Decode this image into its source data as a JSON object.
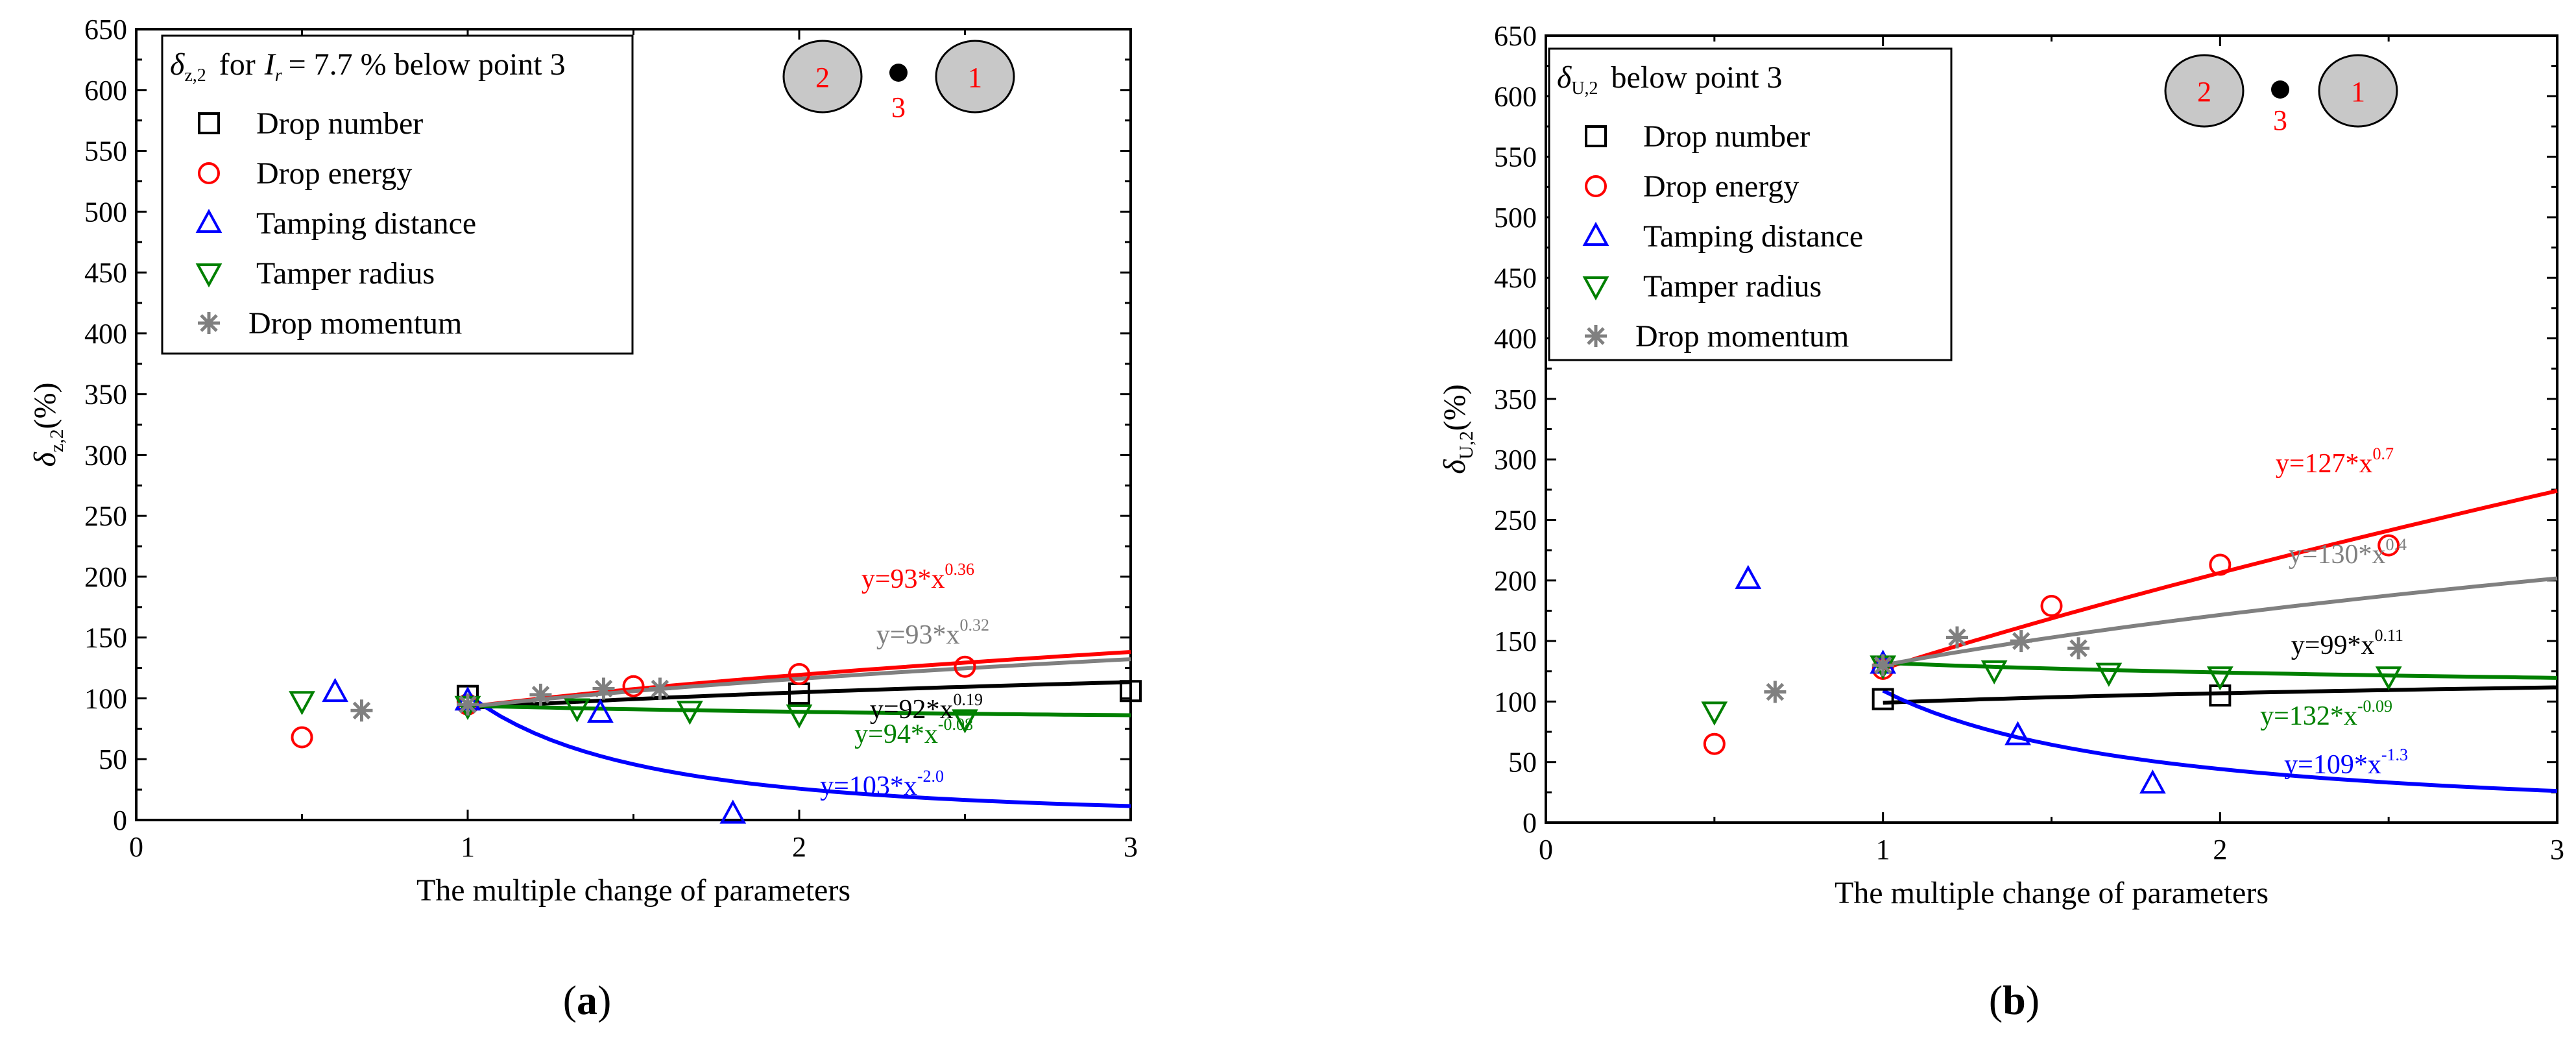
{
  "captions": [
    "(a)",
    "(b)"
  ],
  "common": {
    "xlabel": "The multiple change of parameters",
    "legend_labels": [
      "Drop number",
      "Drop energy",
      "Tamping distance",
      "Tamper radius",
      "Drop momentum"
    ],
    "diagram_labels": {
      "left": "2",
      "point": "3",
      "right": "1"
    }
  },
  "colors": {
    "drop_number": "#000000",
    "drop_energy": "#ff0000",
    "tamping_distance": "#0000ff",
    "tamper_radius": "#008000",
    "drop_momentum": "#808080"
  },
  "chart_data": [
    {
      "type": "scatter",
      "panel": "a",
      "ylabel_symbol": "δ",
      "ylabel_sub": "z,2",
      "ylabel_unit": "(%)",
      "legend_title": {
        "symbol": "δ",
        "sub": "z,2",
        "pre": "for",
        "var": "I",
        "var_sub": "r",
        "post": "= 7.7 % below point 3"
      },
      "xlim": [
        0,
        3
      ],
      "ylim": [
        0,
        650
      ],
      "xticks": [
        "0",
        "1",
        "2",
        "3"
      ],
      "yticks": [
        "0",
        "50",
        "100",
        "150",
        "200",
        "250",
        "300",
        "350",
        "400",
        "450",
        "500",
        "550",
        "600",
        "650"
      ],
      "series": [
        {
          "name": "Drop number",
          "key": "drop_number",
          "marker": "square",
          "points": [
            [
              1,
              102
            ],
            [
              2,
              104
            ],
            [
              3,
              106
            ]
          ],
          "fit": {
            "a": 92,
            "b": 0.19
          },
          "eq": {
            "base": "y=92*x",
            "exp": "0.19"
          }
        },
        {
          "name": "Drop energy",
          "key": "drop_energy",
          "marker": "circle",
          "points": [
            [
              0.5,
              68
            ],
            [
              1,
              95
            ],
            [
              1.5,
              110
            ],
            [
              2,
              120
            ],
            [
              2.5,
              126
            ]
          ],
          "fit": {
            "a": 93,
            "b": 0.36
          },
          "eq": {
            "base": "y=93*x",
            "exp": "0.36"
          }
        },
        {
          "name": "Tamping distance",
          "key": "tamping_distance",
          "marker": "triangle-up",
          "points": [
            [
              0.6,
              105
            ],
            [
              1,
              98
            ],
            [
              1.4,
              88
            ],
            [
              1.8,
              5
            ]
          ],
          "fit": {
            "a": 103,
            "b": -2.0
          },
          "eq": {
            "base": "y=103*x",
            "exp": "-2.0"
          }
        },
        {
          "name": "Tamper radius",
          "key": "tamper_radius",
          "marker": "triangle-down",
          "points": [
            [
              0.5,
              98
            ],
            [
              1,
              94
            ],
            [
              1.33,
              92
            ],
            [
              1.67,
              90
            ],
            [
              2,
              87
            ],
            [
              2.5,
              83
            ]
          ],
          "fit": {
            "a": 94,
            "b": -0.08
          },
          "eq": {
            "base": "y=94*x",
            "exp": "-0.08"
          }
        },
        {
          "name": "Drop momentum",
          "key": "drop_momentum",
          "marker": "star",
          "points": [
            [
              0.68,
              90
            ],
            [
              1,
              95
            ],
            [
              1.22,
              103
            ],
            [
              1.41,
              108
            ],
            [
              1.58,
              108
            ]
          ],
          "fit": {
            "a": 93,
            "b": 0.32
          },
          "eq": {
            "base": "y=93*x",
            "exp": "0.32"
          }
        }
      ]
    },
    {
      "type": "scatter",
      "panel": "b",
      "ylabel_symbol": "δ",
      "ylabel_sub": "U,2",
      "ylabel_unit": "(%)",
      "legend_title": {
        "symbol": "δ",
        "sub": "U,2",
        "post": "below point 3"
      },
      "xlim": [
        0,
        3
      ],
      "ylim": [
        0,
        650
      ],
      "xticks": [
        "0",
        "1",
        "2",
        "3"
      ],
      "yticks": [
        "0",
        "50",
        "100",
        "150",
        "200",
        "250",
        "300",
        "350",
        "400",
        "450",
        "500",
        "550",
        "600",
        "650"
      ],
      "series": [
        {
          "name": "Drop number",
          "key": "drop_number",
          "marker": "square",
          "points": [
            [
              1,
              102
            ],
            [
              2,
              105
            ]
          ],
          "fit": {
            "a": 99,
            "b": 0.11
          },
          "eq": {
            "base": "y=99*x",
            "exp": "0.11"
          }
        },
        {
          "name": "Drop energy",
          "key": "drop_energy",
          "marker": "circle",
          "points": [
            [
              0.5,
              65
            ],
            [
              1,
              127
            ],
            [
              1.5,
              179
            ],
            [
              2,
              213
            ],
            [
              2.5,
              229
            ]
          ],
          "fit": {
            "a": 127,
            "b": 0.7
          },
          "eq": {
            "base": "y=127*x",
            "exp": "0.7"
          }
        },
        {
          "name": "Tamping distance",
          "key": "tamping_distance",
          "marker": "triangle-up",
          "points": [
            [
              0.6,
              201
            ],
            [
              1,
              131
            ],
            [
              1.4,
              72
            ],
            [
              1.8,
              32
            ]
          ],
          "fit": {
            "a": 109,
            "b": -1.3
          },
          "eq": {
            "base": "y=109*x",
            "exp": "-1.3"
          }
        },
        {
          "name": "Tamper radius",
          "key": "tamper_radius",
          "marker": "triangle-down",
          "points": [
            [
              0.5,
              92
            ],
            [
              1,
              130
            ],
            [
              1.33,
              126
            ],
            [
              1.67,
              124
            ],
            [
              2,
              121
            ],
            [
              2.5,
              121
            ]
          ],
          "fit": {
            "a": 132,
            "b": -0.09
          },
          "eq": {
            "base": "y=132*x",
            "exp": "-0.09"
          }
        },
        {
          "name": "Drop momentum",
          "key": "drop_momentum",
          "marker": "star",
          "points": [
            [
              0.68,
              108
            ],
            [
              1,
              130
            ],
            [
              1.22,
              153
            ],
            [
              1.41,
              150
            ],
            [
              1.58,
              144
            ]
          ],
          "fit": {
            "a": 130,
            "b": 0.4
          },
          "eq": {
            "base": "y=130*x",
            "exp": "0.4"
          }
        }
      ]
    }
  ]
}
